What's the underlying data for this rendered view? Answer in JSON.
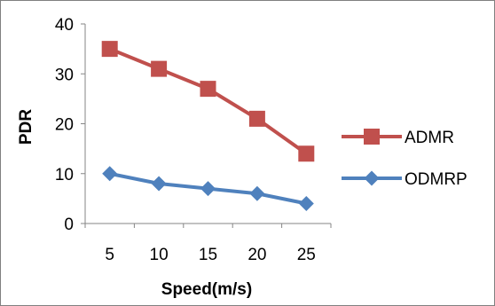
{
  "chart_data": {
    "type": "line",
    "title": "",
    "xlabel": "Speed(m/s)",
    "ylabel": "PDR",
    "categories": [
      "5",
      "10",
      "15",
      "20",
      "25"
    ],
    "x": [
      5,
      10,
      15,
      20,
      25
    ],
    "ylim": [
      0,
      40
    ],
    "yticks": [
      0,
      10,
      20,
      30,
      40
    ],
    "ytick_labels": [
      "0",
      "10",
      "20",
      "30",
      "40"
    ],
    "grid": false,
    "legend": "right",
    "series": [
      {
        "name": "ADMR",
        "values": [
          35,
          31,
          27,
          21,
          14
        ],
        "color": "#C0504D",
        "marker": "square"
      },
      {
        "name": "ODMRP",
        "values": [
          10,
          8,
          7,
          6,
          4
        ],
        "color": "#4F81BD",
        "marker": "diamond"
      }
    ]
  }
}
